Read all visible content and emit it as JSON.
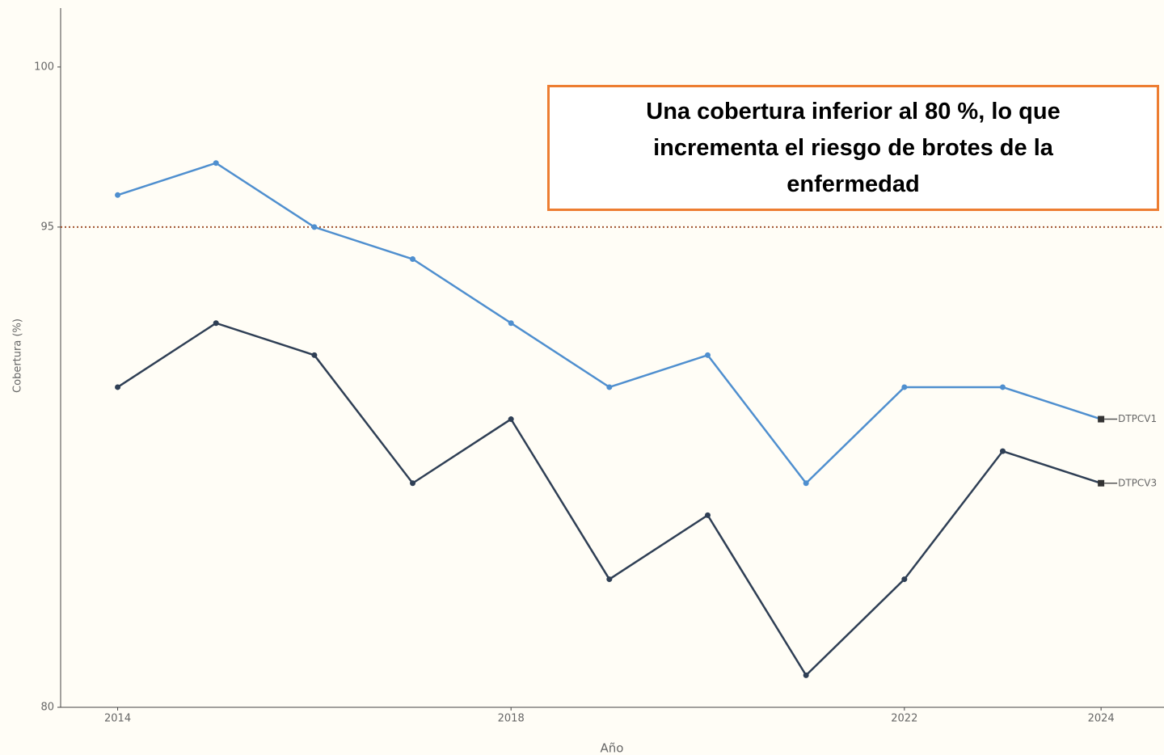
{
  "chart_data": {
    "type": "line",
    "x_label": "Año",
    "y_label": "Cobertura (%)",
    "x": [
      2014,
      2015,
      2016,
      2017,
      2018,
      2019,
      2020,
      2021,
      2022,
      2023,
      2024
    ],
    "series": [
      {
        "name": "DTPCV1",
        "color": "#4f8fcf",
        "values": [
          96,
          97,
          95,
          94,
          92,
          90,
          91,
          87,
          90,
          90,
          89
        ]
      },
      {
        "name": "DTPCV3",
        "color": "#2f3f55",
        "values": [
          90,
          92,
          91,
          87,
          89,
          84,
          86,
          81,
          84,
          88,
          87
        ]
      }
    ],
    "xlim": [
      2013.42,
      2024.64
    ],
    "xticks": [
      2014,
      2018,
      2022,
      2024
    ],
    "ylim": [
      80,
      101.84
    ],
    "yticks": [
      80,
      95,
      100
    ],
    "reference_line": {
      "value": 95,
      "color": "#a0522d"
    },
    "annotation": "Una cobertura inferior al 80 %, lo que incrementa el riesgo de brotes de la enfermedad"
  }
}
